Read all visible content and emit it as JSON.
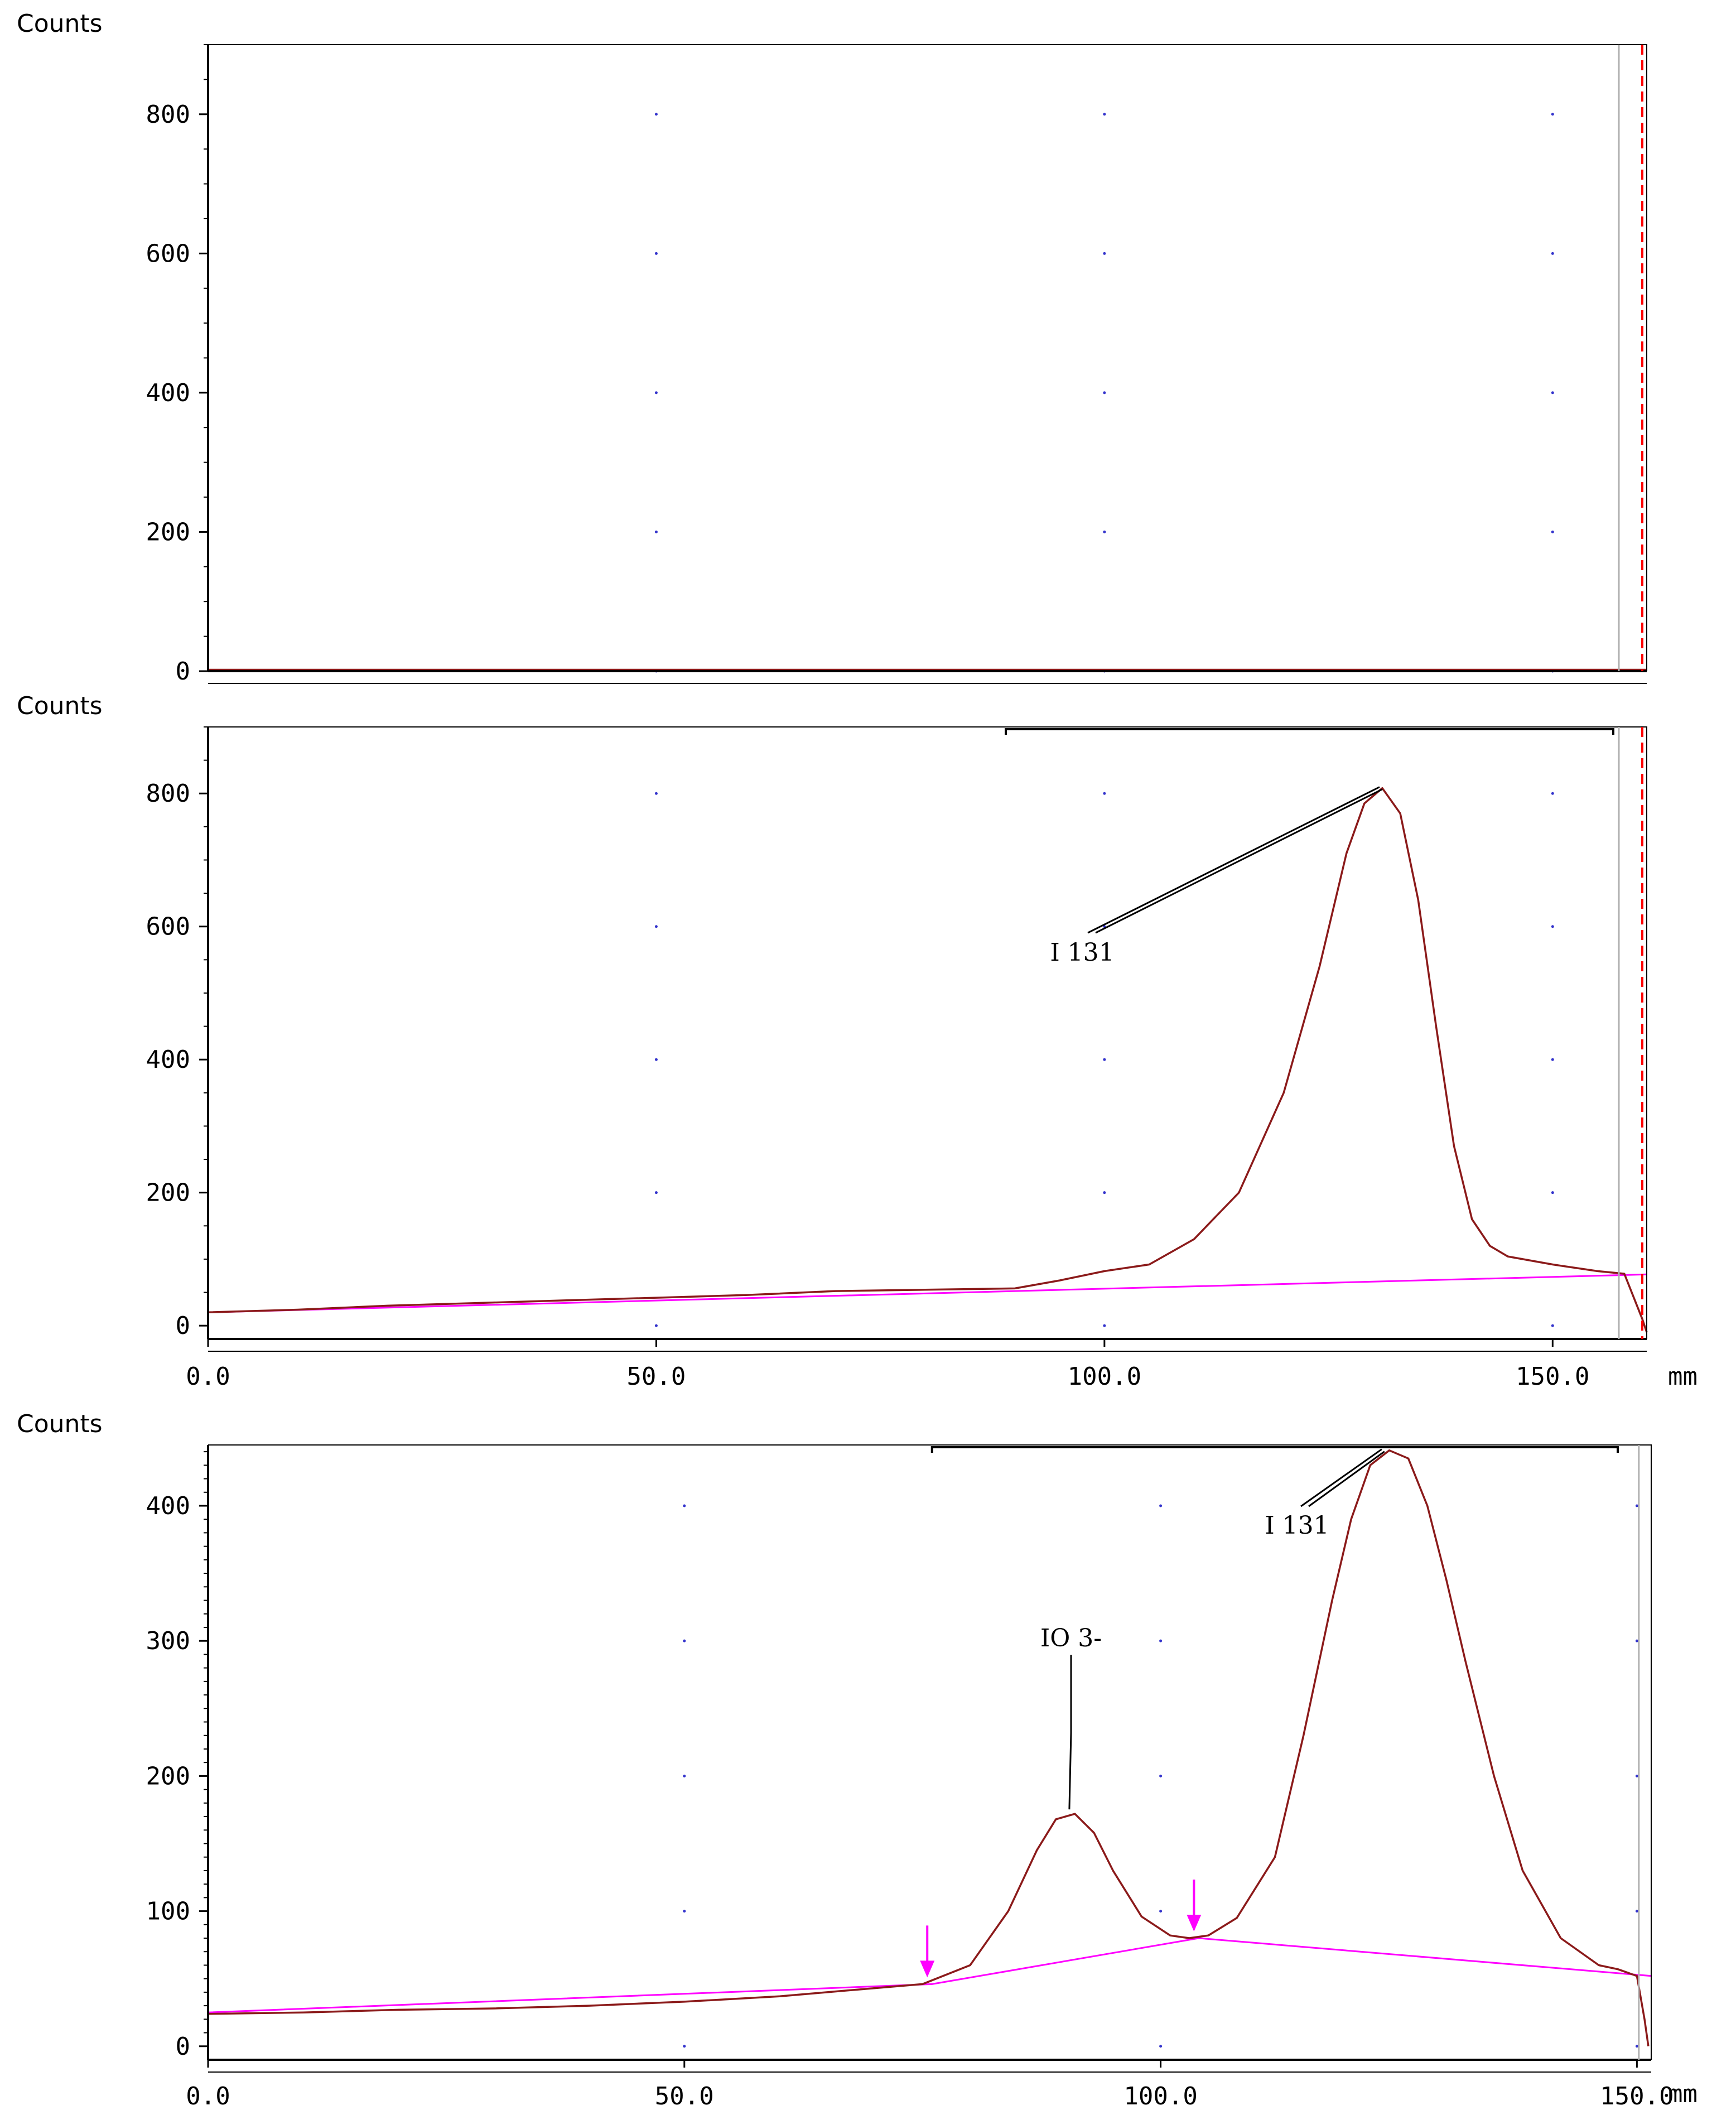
{
  "colors": {
    "trace": "#8b1a1a",
    "baseline": "#ff00ff",
    "marker": "#ff00ff",
    "grid_dot": "#3333cc",
    "cursor_dashed": "#ff0000",
    "cursor_solid": "#b0b0b0",
    "axis": "#000000"
  },
  "chart_data": [
    {
      "type": "line",
      "ylabel": "Counts",
      "xlabel": "",
      "xlim": [
        0,
        160.5
      ],
      "ylim": [
        0,
        900
      ],
      "ytick_values": [
        0,
        200,
        400,
        600,
        800
      ],
      "yticks": [
        "0",
        "200",
        "400",
        "600",
        "800"
      ],
      "xticks": [],
      "grid": "dotted",
      "series": [
        {
          "role": "trace",
          "x": [
            0,
            5,
            10,
            20,
            30,
            40,
            50,
            60,
            70,
            80,
            90,
            100,
            110,
            120,
            130,
            140,
            150,
            155,
            158,
            160.5
          ],
          "y": [
            2,
            2,
            2,
            2,
            2,
            2,
            2,
            2,
            2,
            2,
            2,
            2,
            2,
            2,
            2,
            2,
            2,
            2,
            2,
            2
          ]
        },
        {
          "role": "baseline",
          "x": [
            0,
            160.5
          ],
          "y": [
            0,
            0
          ]
        }
      ],
      "annotations": []
    },
    {
      "type": "line",
      "ylabel": "Counts",
      "xlabel": "mm",
      "xlim": [
        0,
        160.5
      ],
      "ylim": [
        -20,
        900
      ],
      "ytick_values": [
        0,
        200,
        400,
        600,
        800
      ],
      "yticks": [
        "0",
        "200",
        "400",
        "600",
        "800"
      ],
      "xtick_values": [
        0,
        50,
        100,
        150
      ],
      "xticks": [
        "0.0",
        "50.0",
        "100.0",
        "150.0"
      ],
      "grid": "dotted",
      "series": [
        {
          "role": "trace",
          "x": [
            0,
            10,
            20,
            30,
            40,
            50,
            60,
            70,
            80,
            90,
            95,
            100,
            105,
            110,
            115,
            120,
            124,
            127,
            129,
            131,
            133,
            135,
            137,
            139,
            141,
            143,
            145,
            150,
            155,
            158,
            160,
            160.5
          ],
          "y": [
            20,
            24,
            30,
            34,
            38,
            42,
            46,
            52,
            54,
            56,
            68,
            82,
            92,
            130,
            200,
            350,
            540,
            710,
            785,
            808,
            770,
            640,
            450,
            270,
            160,
            120,
            104,
            92,
            82,
            78,
            10,
            -10
          ]
        },
        {
          "role": "baseline",
          "x": [
            0,
            160.5
          ],
          "y": [
            20,
            77
          ]
        }
      ],
      "annotations": [
        {
          "text": "I 131",
          "x": 131,
          "y": 808
        }
      ]
    },
    {
      "type": "line",
      "ylabel": "Counts",
      "xlabel": "mm",
      "xlim": [
        0,
        151.5
      ],
      "ylim": [
        -10,
        445
      ],
      "ytick_values": [
        0,
        100,
        200,
        300,
        400
      ],
      "yticks": [
        "0",
        "100",
        "200",
        "300",
        "400"
      ],
      "xtick_values": [
        0,
        50,
        100,
        150
      ],
      "xticks": [
        "0.0",
        "50.0",
        "100.0",
        "150.0"
      ],
      "grid": "dotted",
      "series": [
        {
          "role": "trace",
          "x": [
            0,
            10,
            20,
            30,
            40,
            50,
            60,
            70,
            75,
            80,
            84,
            87,
            89,
            91,
            93,
            95,
            98,
            101,
            103,
            105,
            108,
            112,
            115,
            118,
            120,
            122,
            124,
            126,
            128,
            130,
            132,
            135,
            138,
            142,
            146,
            148,
            150,
            150.8,
            151.2
          ],
          "y": [
            24,
            25,
            27,
            28,
            30,
            33,
            37,
            43,
            46,
            60,
            100,
            145,
            168,
            172,
            158,
            130,
            96,
            82,
            80,
            82,
            95,
            140,
            230,
            330,
            390,
            430,
            441,
            435,
            400,
            345,
            285,
            200,
            130,
            80,
            60,
            57,
            52,
            20,
            0
          ]
        },
        {
          "role": "baseline",
          "x": [
            0,
            76,
            104,
            151.5
          ],
          "y": [
            25,
            46,
            80,
            52
          ]
        }
      ],
      "markers": [
        {
          "x": 75.5,
          "y": 46
        },
        {
          "x": 103.5,
          "y": 80
        }
      ],
      "annotations": [
        {
          "text": "IO 3-",
          "x": 91,
          "y": 172
        },
        {
          "text": "I 131",
          "x": 123.5,
          "y": 441
        }
      ]
    }
  ]
}
